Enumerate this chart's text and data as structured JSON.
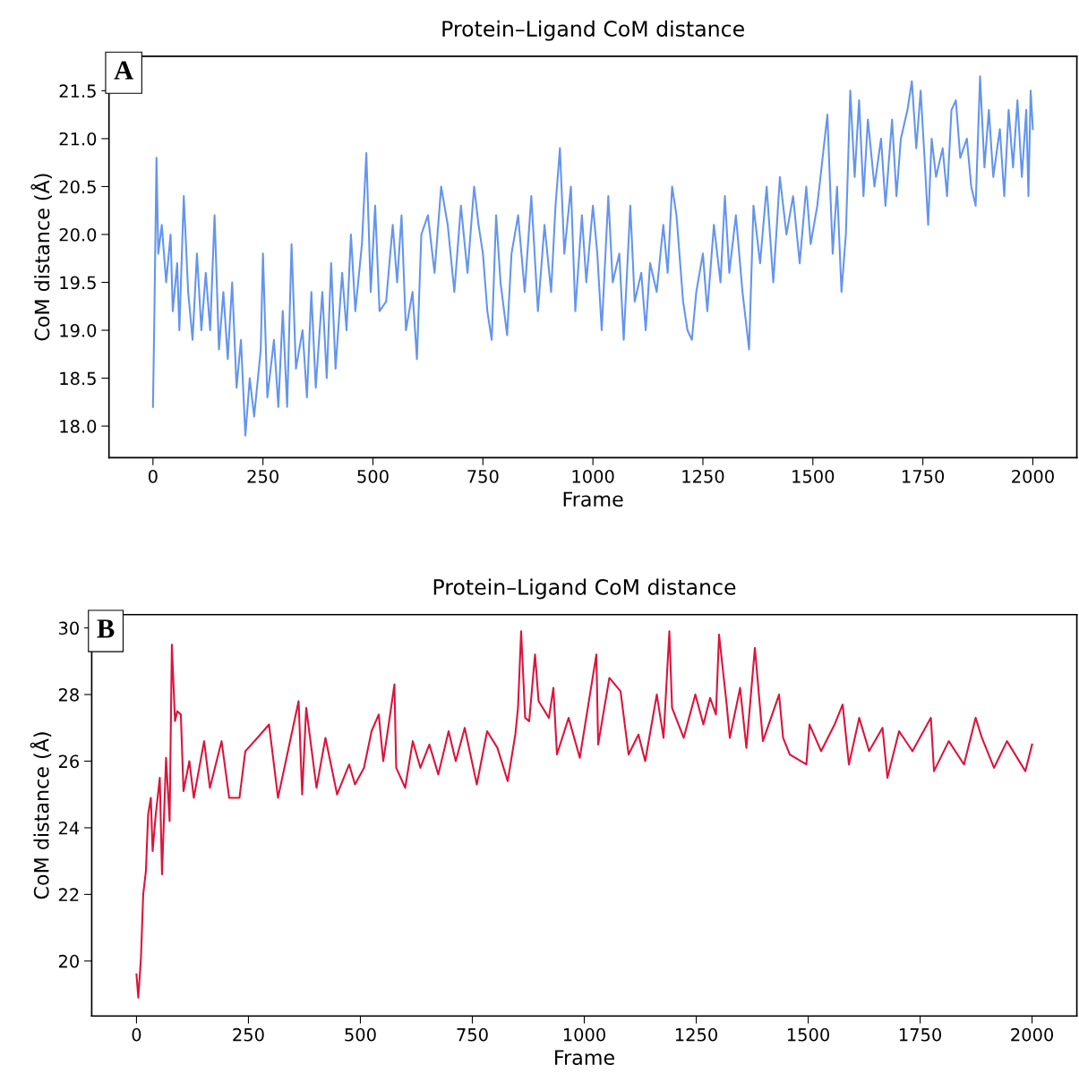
{
  "chart_data": [
    {
      "type": "line",
      "title": "Protein–Ligand CoM distance",
      "xlabel": "Frame",
      "ylabel": "CoM distance (Å)",
      "annotations": [
        "A"
      ],
      "xlim": [
        -100,
        2100
      ],
      "xticks": [
        0,
        250,
        500,
        750,
        1000,
        1250,
        1500,
        1750,
        2000
      ],
      "ylim": [
        17.67,
        21.86
      ],
      "yticks": [
        {
          "value": 18,
          "label": "18.0"
        },
        18.5,
        {
          "value": 19,
          "label": "19.0"
        },
        19.5,
        {
          "value": 20,
          "label": "20.0"
        },
        20.5,
        {
          "value": 21,
          "label": "21.0"
        },
        21.5
      ],
      "grid": false,
      "series": [
        {
          "color": "#6495ed",
          "x": [
            0,
            3,
            8,
            12,
            20,
            30,
            40,
            45,
            55,
            60,
            70,
            80,
            90,
            100,
            110,
            120,
            130,
            140,
            150,
            160,
            170,
            180,
            190,
            200,
            210,
            220,
            230,
            245,
            250,
            260,
            275,
            285,
            295,
            305,
            315,
            325,
            340,
            350,
            360,
            370,
            385,
            395,
            405,
            415,
            430,
            440,
            450,
            460,
            475,
            485,
            495,
            505,
            515,
            530,
            545,
            555,
            565,
            575,
            590,
            600,
            610,
            625,
            640,
            655,
            670,
            685,
            700,
            715,
            730,
            740,
            750,
            760,
            770,
            780,
            790,
            805,
            815,
            830,
            845,
            860,
            875,
            890,
            905,
            915,
            925,
            935,
            950,
            960,
            975,
            985,
            1000,
            1010,
            1020,
            1035,
            1045,
            1060,
            1070,
            1085,
            1095,
            1110,
            1120,
            1130,
            1145,
            1160,
            1170,
            1180,
            1190,
            1205,
            1215,
            1225,
            1235,
            1250,
            1260,
            1275,
            1290,
            1300,
            1310,
            1325,
            1340,
            1355,
            1365,
            1380,
            1395,
            1410,
            1425,
            1440,
            1455,
            1470,
            1485,
            1495,
            1510,
            1533,
            1545,
            1555,
            1565,
            1575,
            1585,
            1595,
            1605,
            1615,
            1625,
            1640,
            1655,
            1665,
            1680,
            1690,
            1700,
            1715,
            1725,
            1735,
            1745,
            1755,
            1762,
            1770,
            1780,
            1795,
            1805,
            1815,
            1825,
            1835,
            1850,
            1860,
            1870,
            1880,
            1890,
            1900,
            1910,
            1925,
            1935,
            1945,
            1955,
            1965,
            1975,
            1985,
            1990,
            1995,
            2000
          ],
          "values": [
            18.2,
            19.1,
            20.8,
            19.8,
            20.1,
            19.5,
            20.0,
            19.2,
            19.7,
            19.0,
            20.4,
            19.4,
            18.9,
            19.8,
            19.0,
            19.6,
            19.0,
            20.2,
            18.8,
            19.4,
            18.7,
            19.5,
            18.4,
            18.9,
            17.9,
            18.5,
            18.1,
            18.8,
            19.8,
            18.3,
            18.9,
            18.2,
            19.2,
            18.2,
            19.9,
            18.6,
            19.0,
            18.3,
            19.4,
            18.4,
            19.4,
            18.5,
            19.7,
            18.6,
            19.6,
            19.0,
            20.0,
            19.2,
            19.9,
            20.85,
            19.4,
            20.3,
            19.2,
            19.3,
            20.1,
            19.5,
            20.2,
            19.0,
            19.4,
            18.7,
            20.0,
            20.2,
            19.6,
            20.5,
            20.1,
            19.4,
            20.3,
            19.6,
            20.5,
            20.1,
            19.8,
            19.2,
            18.9,
            20.2,
            19.5,
            18.95,
            19.8,
            20.2,
            19.4,
            20.4,
            19.2,
            20.1,
            19.4,
            20.3,
            20.9,
            19.8,
            20.5,
            19.2,
            20.2,
            19.5,
            20.3,
            19.8,
            19.0,
            20.4,
            19.5,
            19.8,
            18.9,
            20.3,
            19.3,
            19.6,
            19.0,
            19.7,
            19.4,
            20.1,
            19.6,
            20.5,
            20.2,
            19.3,
            19.0,
            18.9,
            19.4,
            19.8,
            19.2,
            20.1,
            19.5,
            20.4,
            19.6,
            20.2,
            19.4,
            18.8,
            20.3,
            19.7,
            20.5,
            19.5,
            20.6,
            20.0,
            20.4,
            19.7,
            20.5,
            19.9,
            20.3,
            21.25,
            19.8,
            20.5,
            19.4,
            20.0,
            21.5,
            20.6,
            21.4,
            20.4,
            21.2,
            20.5,
            21.0,
            20.3,
            21.2,
            20.4,
            21.0,
            21.3,
            21.6,
            20.9,
            21.5,
            20.7,
            20.1,
            21.0,
            20.6,
            20.9,
            20.4,
            21.3,
            21.4,
            20.8,
            21.0,
            20.5,
            20.3,
            21.65,
            20.7,
            21.3,
            20.6,
            21.1,
            20.4,
            21.3,
            20.7,
            21.4,
            20.6,
            21.3,
            20.4,
            21.5,
            21.1
          ]
        }
      ]
    },
    {
      "type": "line",
      "title": "Protein–Ligand CoM distance",
      "xlabel": "Frame",
      "ylabel": "CoM distance (Å)",
      "annotations": [
        "B"
      ],
      "xlim": [
        -100,
        2100
      ],
      "xticks": [
        0,
        250,
        500,
        750,
        1000,
        1250,
        1500,
        1750,
        2000
      ],
      "ylim": [
        18.35,
        30.4
      ],
      "yticks": [
        20,
        22,
        24,
        26,
        28,
        30
      ],
      "grid": false,
      "series": [
        {
          "color": "#dc143c",
          "x": [
            0,
            4,
            10,
            15,
            21,
            26,
            32,
            36,
            43,
            52,
            57,
            66,
            74,
            79,
            86,
            91,
            99,
            105,
            118,
            128,
            151,
            164,
            190,
            207,
            230,
            243,
            270,
            296,
            316,
            362,
            370,
            379,
            402,
            422,
            448,
            475,
            488,
            508,
            525,
            541,
            551,
            561,
            576,
            580,
            600,
            617,
            634,
            654,
            674,
            697,
            713,
            733,
            760,
            783,
            806,
            829,
            846,
            852,
            859,
            868,
            877,
            890,
            898,
            921,
            931,
            939,
            965,
            990,
            1027,
            1031,
            1056,
            1081,
            1099,
            1121,
            1136,
            1162,
            1177,
            1190,
            1196,
            1222,
            1248,
            1266,
            1281,
            1294,
            1301,
            1318,
            1325,
            1348,
            1362,
            1381,
            1399,
            1435,
            1444,
            1459,
            1496,
            1503,
            1529,
            1559,
            1577,
            1591,
            1614,
            1636,
            1666,
            1677,
            1703,
            1733,
            1774,
            1781,
            1814,
            1848,
            1874,
            1888,
            1915,
            1944,
            1985,
            2000
          ],
          "values": [
            19.6,
            18.9,
            20.1,
            22.0,
            22.7,
            24.4,
            24.9,
            23.3,
            24.4,
            25.5,
            22.6,
            26.1,
            24.2,
            29.5,
            27.2,
            27.5,
            27.4,
            25.1,
            26.0,
            24.9,
            26.6,
            25.2,
            26.6,
            24.9,
            24.9,
            26.3,
            26.7,
            27.1,
            24.9,
            27.8,
            25.0,
            27.6,
            25.2,
            26.7,
            25.0,
            25.9,
            25.3,
            25.8,
            26.9,
            27.4,
            26.0,
            26.9,
            28.3,
            25.8,
            25.2,
            26.6,
            25.8,
            26.5,
            25.6,
            26.9,
            26.0,
            27.0,
            25.3,
            26.9,
            26.4,
            25.4,
            26.8,
            27.6,
            29.9,
            27.3,
            27.2,
            29.2,
            27.8,
            27.3,
            28.2,
            26.2,
            27.3,
            26.1,
            29.2,
            26.5,
            28.5,
            28.1,
            26.2,
            26.8,
            26.0,
            28.0,
            26.7,
            29.9,
            27.6,
            26.7,
            28.0,
            27.1,
            27.9,
            27.4,
            29.8,
            27.7,
            26.7,
            28.2,
            26.4,
            29.4,
            26.6,
            28.0,
            26.7,
            26.2,
            25.9,
            27.1,
            26.3,
            27.1,
            27.7,
            25.9,
            27.3,
            26.3,
            27.0,
            25.5,
            26.9,
            26.3,
            27.3,
            25.7,
            26.6,
            25.9,
            27.3,
            26.7,
            25.8,
            26.6,
            25.7,
            26.5
          ]
        }
      ]
    }
  ]
}
